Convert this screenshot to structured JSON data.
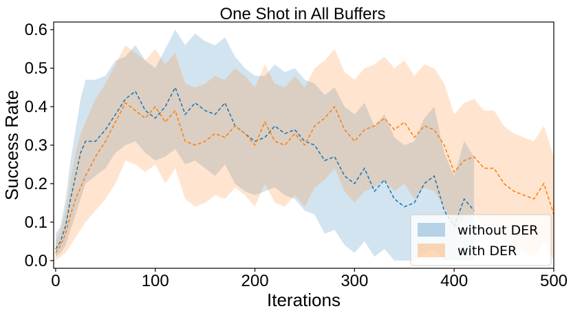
{
  "chart_data": {
    "type": "line",
    "title": "One Shot in All Buffers",
    "xlabel": "Iterations",
    "ylabel": "Success Rate",
    "xlim": [
      -2,
      500
    ],
    "ylim": [
      -0.02,
      0.62
    ],
    "xticks": [
      0,
      100,
      200,
      300,
      400,
      500
    ],
    "yticks": [
      0.0,
      0.1,
      0.2,
      0.3,
      0.4,
      0.5,
      0.6
    ],
    "grid": false,
    "legend_position": "bottom-right",
    "series": [
      {
        "name": "without DER",
        "color": "#1f77b4",
        "x": [
          0,
          5,
          10,
          15,
          20,
          25,
          30,
          40,
          50,
          60,
          70,
          80,
          90,
          100,
          110,
          120,
          130,
          140,
          150,
          160,
          170,
          180,
          190,
          200,
          210,
          220,
          230,
          240,
          250,
          260,
          270,
          280,
          290,
          300,
          310,
          320,
          330,
          340,
          350,
          360,
          370,
          380,
          390,
          400,
          410,
          420
        ],
        "y": [
          0.03,
          0.05,
          0.09,
          0.16,
          0.22,
          0.28,
          0.31,
          0.31,
          0.34,
          0.38,
          0.42,
          0.44,
          0.39,
          0.37,
          0.4,
          0.45,
          0.38,
          0.41,
          0.39,
          0.38,
          0.41,
          0.35,
          0.33,
          0.31,
          0.32,
          0.35,
          0.33,
          0.34,
          0.31,
          0.3,
          0.26,
          0.27,
          0.22,
          0.2,
          0.24,
          0.18,
          0.21,
          0.16,
          0.14,
          0.15,
          0.2,
          0.22,
          0.13,
          0.09,
          0.16,
          0.13
        ],
        "lower": [
          0.01,
          0.02,
          0.04,
          0.08,
          0.12,
          0.16,
          0.2,
          0.22,
          0.24,
          0.28,
          0.3,
          0.31,
          0.28,
          0.26,
          0.27,
          0.29,
          0.25,
          0.26,
          0.24,
          0.22,
          0.25,
          0.2,
          0.18,
          0.17,
          0.18,
          0.19,
          0.17,
          0.16,
          0.13,
          0.12,
          0.07,
          0.08,
          0.04,
          0.02,
          0.05,
          0.01,
          0.03,
          0.0,
          0.0,
          0.0,
          0.02,
          0.03,
          0.0,
          0.0,
          0.0,
          0.0
        ],
        "upper": [
          0.07,
          0.09,
          0.16,
          0.26,
          0.34,
          0.42,
          0.47,
          0.47,
          0.48,
          0.52,
          0.53,
          0.56,
          0.52,
          0.5,
          0.55,
          0.6,
          0.56,
          0.59,
          0.57,
          0.56,
          0.58,
          0.53,
          0.5,
          0.48,
          0.48,
          0.51,
          0.49,
          0.5,
          0.47,
          0.46,
          0.43,
          0.45,
          0.4,
          0.38,
          0.41,
          0.35,
          0.38,
          0.32,
          0.3,
          0.31,
          0.37,
          0.4,
          0.28,
          0.22,
          0.31,
          0.27
        ]
      },
      {
        "name": "with DER",
        "color": "#ff7f0e",
        "x": [
          0,
          5,
          10,
          15,
          20,
          25,
          30,
          40,
          50,
          60,
          70,
          80,
          90,
          100,
          110,
          120,
          130,
          140,
          150,
          160,
          170,
          180,
          190,
          200,
          210,
          220,
          230,
          240,
          250,
          260,
          270,
          280,
          290,
          300,
          310,
          320,
          330,
          340,
          350,
          360,
          370,
          380,
          390,
          400,
          410,
          420,
          430,
          440,
          450,
          460,
          470,
          480,
          490,
          500
        ],
        "y": [
          0.02,
          0.04,
          0.07,
          0.12,
          0.16,
          0.19,
          0.22,
          0.27,
          0.31,
          0.36,
          0.41,
          0.39,
          0.37,
          0.4,
          0.36,
          0.39,
          0.31,
          0.3,
          0.31,
          0.33,
          0.32,
          0.35,
          0.33,
          0.3,
          0.36,
          0.31,
          0.3,
          0.33,
          0.3,
          0.35,
          0.37,
          0.4,
          0.34,
          0.31,
          0.34,
          0.35,
          0.37,
          0.34,
          0.36,
          0.32,
          0.35,
          0.34,
          0.3,
          0.23,
          0.26,
          0.27,
          0.24,
          0.24,
          0.2,
          0.18,
          0.17,
          0.16,
          0.2,
          0.12
        ],
        "lower": [
          0.0,
          0.01,
          0.02,
          0.04,
          0.06,
          0.08,
          0.1,
          0.13,
          0.16,
          0.2,
          0.26,
          0.25,
          0.23,
          0.25,
          0.2,
          0.24,
          0.16,
          0.14,
          0.15,
          0.17,
          0.16,
          0.19,
          0.17,
          0.14,
          0.2,
          0.15,
          0.14,
          0.17,
          0.14,
          0.19,
          0.21,
          0.24,
          0.18,
          0.15,
          0.18,
          0.19,
          0.21,
          0.18,
          0.2,
          0.16,
          0.19,
          0.18,
          0.14,
          0.08,
          0.11,
          0.12,
          0.09,
          0.09,
          0.05,
          0.03,
          0.02,
          0.01,
          0.05,
          0.0
        ],
        "upper": [
          0.05,
          0.08,
          0.13,
          0.21,
          0.28,
          0.33,
          0.36,
          0.42,
          0.46,
          0.51,
          0.56,
          0.54,
          0.52,
          0.55,
          0.51,
          0.54,
          0.46,
          0.45,
          0.46,
          0.48,
          0.47,
          0.5,
          0.48,
          0.45,
          0.51,
          0.46,
          0.45,
          0.48,
          0.45,
          0.5,
          0.52,
          0.55,
          0.49,
          0.47,
          0.5,
          0.51,
          0.53,
          0.5,
          0.52,
          0.48,
          0.51,
          0.5,
          0.46,
          0.38,
          0.41,
          0.42,
          0.39,
          0.39,
          0.35,
          0.33,
          0.32,
          0.31,
          0.35,
          0.27
        ]
      }
    ]
  }
}
